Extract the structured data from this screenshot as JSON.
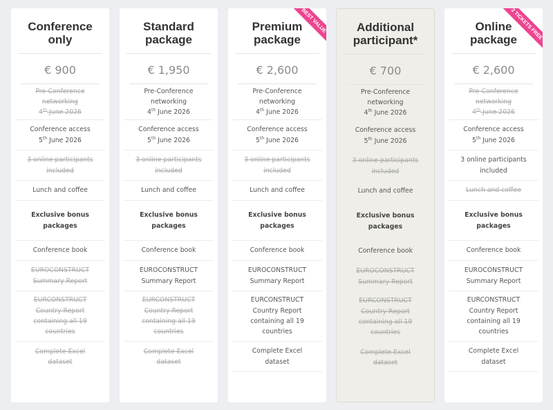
{
  "colors": {
    "ribbon": "#ee4490",
    "background": "#edeef1",
    "highlight_card": "#efeee9"
  },
  "packages": [
    {
      "title": [
        "Conference",
        "only"
      ],
      "price": "€ 900",
      "ribbon": null,
      "highlight": false,
      "features": [
        {
          "lines": [
            "Pre-Conference",
            "networking"
          ],
          "date": {
            "d": "4",
            "sup": "th",
            "rest": " June 2026"
          },
          "struck": true
        },
        {
          "lines": [
            "Conference access"
          ],
          "date": {
            "d": "5",
            "sup": "th",
            "rest": " June 2026"
          },
          "struck": false
        },
        {
          "lines": [
            "3 online participants",
            "included"
          ],
          "struck": true
        },
        {
          "lines": [
            "Lunch and coffee"
          ],
          "struck": false
        },
        {
          "lines": [
            "Exclusive bonus",
            "packages"
          ],
          "bold": true
        },
        {
          "lines": [
            "Conference book"
          ],
          "struck": false
        },
        {
          "lines": [
            "EUROCONSTRUCT",
            "Summary Report"
          ],
          "struck": true
        },
        {
          "lines": [
            "EURCONSTRUCT",
            "Country Report",
            "containing all 19",
            "countries"
          ],
          "struck": true
        },
        {
          "lines": [
            "Complete Excel",
            "dataset"
          ],
          "struck": true
        }
      ]
    },
    {
      "title": [
        "Standard",
        "package"
      ],
      "price": "€ 1,950",
      "ribbon": null,
      "highlight": false,
      "features": [
        {
          "lines": [
            "Pre-Conference",
            "networking"
          ],
          "date": {
            "d": "4",
            "sup": "th",
            "rest": " June 2026"
          },
          "struck": false
        },
        {
          "lines": [
            "Conference access"
          ],
          "date": {
            "d": "5",
            "sup": "th",
            "rest": " June 2026"
          },
          "struck": false
        },
        {
          "lines": [
            "3 online participants",
            "included"
          ],
          "struck": true
        },
        {
          "lines": [
            "Lunch and coffee"
          ],
          "struck": false
        },
        {
          "lines": [
            "Exclusive bonus",
            "packages"
          ],
          "bold": true
        },
        {
          "lines": [
            "Conference book"
          ],
          "struck": false
        },
        {
          "lines": [
            "EUROCONSTRUCT",
            "Summary Report"
          ],
          "struck": false
        },
        {
          "lines": [
            "EURCONSTRUCT",
            "Country Report",
            "containing all 19",
            "countries"
          ],
          "struck": true
        },
        {
          "lines": [
            "Complete Excel",
            "dataset"
          ],
          "struck": true
        }
      ]
    },
    {
      "title": [
        "Premium",
        "package"
      ],
      "price": "€ 2,600",
      "ribbon": "BEST VALUE",
      "highlight": false,
      "features": [
        {
          "lines": [
            "Pre-Conference",
            "networking"
          ],
          "date": {
            "d": "4",
            "sup": "th",
            "rest": " June 2026"
          },
          "struck": false
        },
        {
          "lines": [
            "Conference access"
          ],
          "date": {
            "d": "5",
            "sup": "th",
            "rest": " June 2026"
          },
          "struck": false
        },
        {
          "lines": [
            "3 online participants",
            "included"
          ],
          "struck": true
        },
        {
          "lines": [
            "Lunch and coffee"
          ],
          "struck": false
        },
        {
          "lines": [
            "Exclusive bonus",
            "packages"
          ],
          "bold": true
        },
        {
          "lines": [
            "Conference book"
          ],
          "struck": false
        },
        {
          "lines": [
            "EUROCONSTRUCT",
            "Summary Report"
          ],
          "struck": false
        },
        {
          "lines": [
            "EURCONSTRUCT",
            "Country Report",
            "containing all 19",
            "countries"
          ],
          "struck": false
        },
        {
          "lines": [
            "Complete Excel",
            "dataset"
          ],
          "struck": false
        }
      ]
    },
    {
      "title": [
        "Additional",
        "participant*"
      ],
      "price": "€ 700",
      "ribbon": null,
      "highlight": true,
      "features": [
        {
          "lines": [
            "Pre-Conference",
            "networking"
          ],
          "date": {
            "d": "4",
            "sup": "th",
            "rest": " June 2026"
          },
          "struck": false
        },
        {
          "lines": [
            "Conference access"
          ],
          "date": {
            "d": "5",
            "sup": "th",
            "rest": " June 2026"
          },
          "struck": false
        },
        {
          "lines": [
            "3 online participants",
            "included"
          ],
          "struck": true
        },
        {
          "lines": [
            "Lunch and coffee"
          ],
          "struck": false
        },
        {
          "lines": [
            "Exclusive bonus",
            "packages"
          ],
          "bold": true
        },
        {
          "lines": [
            "Conference book"
          ],
          "struck": false
        },
        {
          "lines": [
            "EUROCONSTRUCT",
            "Summary Report"
          ],
          "struck": true
        },
        {
          "lines": [
            "EURCONSTRUCT",
            "Country Report",
            "containing all 19",
            "countries"
          ],
          "struck": true
        },
        {
          "lines": [
            "Complete Excel",
            "dataset"
          ],
          "struck": true
        }
      ]
    },
    {
      "title": [
        "Online",
        "package"
      ],
      "price": "€ 2,600",
      "ribbon": "2 TICKETS FREE",
      "highlight": false,
      "features": [
        {
          "lines": [
            "Pre-Conference",
            "networking"
          ],
          "date": {
            "d": "4",
            "sup": "th",
            "rest": " June 2026"
          },
          "struck": true
        },
        {
          "lines": [
            "Conference access"
          ],
          "date": {
            "d": "5",
            "sup": "th",
            "rest": " June 2026"
          },
          "struck": false
        },
        {
          "lines": [
            "3 online participants",
            "included"
          ],
          "struck": false
        },
        {
          "lines": [
            "Lunch and coffee"
          ],
          "struck": true
        },
        {
          "lines": [
            "Exclusive bonus",
            "packages"
          ],
          "bold": true
        },
        {
          "lines": [
            "Conference book"
          ],
          "struck": false
        },
        {
          "lines": [
            "EUROCONSTRUCT",
            "Summary Report"
          ],
          "struck": false
        },
        {
          "lines": [
            "EURCONSTRUCT",
            "Country Report",
            "containing all 19",
            "countries"
          ],
          "struck": false
        },
        {
          "lines": [
            "Complete Excel",
            "dataset"
          ],
          "struck": false
        }
      ]
    }
  ]
}
